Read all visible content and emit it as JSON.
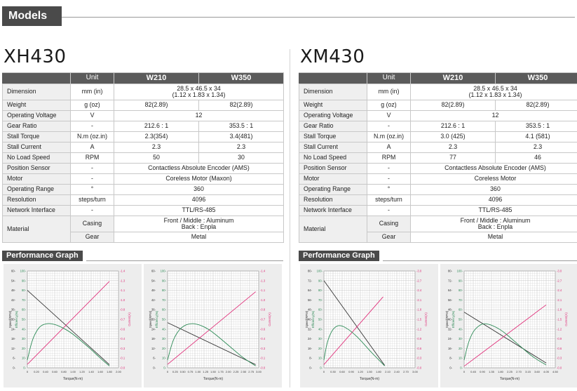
{
  "header": {
    "title": "Models"
  },
  "models": [
    {
      "name": "XH430",
      "table": {
        "unit_header": "Unit",
        "variants": [
          "W210",
          "W350"
        ],
        "rows": [
          {
            "label": "Dimension",
            "unit": "mm (in)",
            "merged": "28.5 x 46.5 x 34\n(1.12 x 1.83 x 1.34)"
          },
          {
            "label": "Weight",
            "unit": "g (oz)",
            "values": [
              "82(2.89)",
              "82(2.89)"
            ]
          },
          {
            "label": "Operating Voltage",
            "unit": "V",
            "merged": "12"
          },
          {
            "label": "Gear Ratio",
            "unit": "-",
            "values": [
              "212.6 : 1",
              "353.5 : 1"
            ]
          },
          {
            "label": "Stall Torque",
            "unit": "N.m (oz.in)",
            "values": [
              "2.3(354)",
              "3.4(481)"
            ]
          },
          {
            "label": "Stall Current",
            "unit": "A",
            "values": [
              "2.3",
              "2.3"
            ]
          },
          {
            "label": "No Load Speed",
            "unit": "RPM",
            "values": [
              "50",
              "30"
            ]
          },
          {
            "label": "Position Sensor",
            "unit": "-",
            "merged": "Contactless Absolute Encoder (AMS)"
          },
          {
            "label": "Motor",
            "unit": "-",
            "merged": "Coreless Motor (Maxon)"
          },
          {
            "label": "Operating Range",
            "unit": "°",
            "merged": "360"
          },
          {
            "label": "Resolution",
            "unit": "steps/turn",
            "merged": "4096"
          },
          {
            "label": "Network Interface",
            "unit": "-",
            "merged": "TTL/RS-485"
          }
        ],
        "material": {
          "label": "Material",
          "casing_label": "Casing",
          "casing": "Front / Middle : Aluminum\nBack : Enpla",
          "gear_label": "Gear",
          "gear": "Metal"
        }
      }
    },
    {
      "name": "XM430",
      "table": {
        "unit_header": "Unit",
        "variants": [
          "W210",
          "W350"
        ],
        "rows": [
          {
            "label": "Dimension",
            "unit": "mm (in)",
            "merged": "28.5 x 46.5 x 34\n(1.12 x 1.83 x 1.34)"
          },
          {
            "label": "Weight",
            "unit": "g (oz)",
            "values": [
              "82(2.89)",
              "82(2.89)"
            ]
          },
          {
            "label": "Operating Voltage",
            "unit": "V",
            "merged": "12"
          },
          {
            "label": "Gear Ratio",
            "unit": "-",
            "values": [
              "212.6 : 1",
              "353.5 : 1"
            ]
          },
          {
            "label": "Stall Torque",
            "unit": "N.m (oz.in)",
            "values": [
              "3.0 (425)",
              "4.1 (581)"
            ]
          },
          {
            "label": "Stall Current",
            "unit": "A",
            "values": [
              "2.3",
              "2.3"
            ]
          },
          {
            "label": "No Load Speed",
            "unit": "RPM",
            "values": [
              "77",
              "46"
            ]
          },
          {
            "label": "Position Sensor",
            "unit": "-",
            "merged": "Contactless Absolute Encoder (AMS)"
          },
          {
            "label": "Motor",
            "unit": "-",
            "merged": "Coreless Motor"
          },
          {
            "label": "Operating Range",
            "unit": "°",
            "merged": "360"
          },
          {
            "label": "Resolution",
            "unit": "steps/turn",
            "merged": "4096"
          },
          {
            "label": "Network Interface",
            "unit": "-",
            "merged": "TTL/RS-485"
          }
        ],
        "material": {
          "label": "Material",
          "casing_label": "Casing",
          "casing": "Front / Middle : Aluminum\nBack : Enpla",
          "gear_label": "Gear",
          "gear": "Metal"
        }
      }
    }
  ],
  "performance": {
    "title": "Performance Graph",
    "axis_labels": {
      "x": "Torque(N-m)",
      "speed": "Speed(RPM)",
      "efficiency": "Efficiency(%)",
      "current": "Current(A)"
    },
    "colors": {
      "speed": "#333333",
      "efficiency": "#2e8b57",
      "current": "#e0307a",
      "grid": "#c4c4c4",
      "plot_bg": "#ffffff",
      "panel_bg": "#ededed"
    }
  },
  "chart_data": [
    {
      "type": "line",
      "model": "XH430",
      "variant": "W210",
      "xlim": [
        0,
        2.0
      ],
      "x_ticks": [
        "0",
        "0.20",
        "0.40",
        "0.60",
        "0.80",
        "1.00",
        "1.20",
        "1.40",
        "1.60",
        "1.80",
        "2.00"
      ],
      "speed_ticks": [
        "0",
        "6",
        "12",
        "18",
        "24",
        "30",
        "36",
        "42",
        "48",
        "54",
        "60"
      ],
      "eff_ticks": [
        "0",
        "10",
        "20",
        "30",
        "40",
        "50",
        "60",
        "70",
        "80",
        "90",
        "100"
      ],
      "current_ticks": [
        "0.0",
        "0.1",
        "0.3",
        "0.4",
        "0.6",
        "0.7",
        "0.8",
        "1.0",
        "1.1",
        "1.3",
        "1.4"
      ],
      "speed_lim": [
        0,
        60
      ],
      "eff_lim": [
        0,
        100
      ],
      "current_lim": [
        0,
        1.4
      ],
      "series": [
        {
          "axis": "speed",
          "points": [
            [
              0,
              48
            ],
            [
              1.8,
              2
            ]
          ]
        },
        {
          "axis": "current",
          "points": [
            [
              0,
              0.05
            ],
            [
              1.8,
              1.25
            ]
          ]
        },
        {
          "axis": "efficiency",
          "points": [
            [
              0,
              8
            ],
            [
              0.1,
              28
            ],
            [
              0.2,
              38
            ],
            [
              0.3,
              44
            ],
            [
              0.45,
              46
            ],
            [
              0.6,
              45
            ],
            [
              0.8,
              41
            ],
            [
              1.0,
              35
            ],
            [
              1.2,
              27
            ],
            [
              1.4,
              19
            ],
            [
              1.6,
              10
            ],
            [
              1.8,
              2
            ]
          ]
        }
      ]
    },
    {
      "type": "line",
      "model": "XH430",
      "variant": "W350",
      "xlim": [
        0,
        3.0
      ],
      "x_ticks": [
        "0",
        "0.25",
        "0.50",
        "0.75",
        "1.00",
        "1.25",
        "1.50",
        "1.75",
        "2.00",
        "2.25",
        "2.50",
        "2.75",
        "3.00"
      ],
      "speed_ticks": [
        "0",
        "6",
        "12",
        "18",
        "24",
        "30",
        "36",
        "42",
        "48",
        "54",
        "60"
      ],
      "eff_ticks": [
        "0",
        "10",
        "20",
        "30",
        "40",
        "50",
        "60",
        "70",
        "80",
        "90",
        "100"
      ],
      "current_ticks": [
        "0.0",
        "0.1",
        "0.3",
        "0.4",
        "0.6",
        "0.7",
        "0.8",
        "1.0",
        "1.1",
        "1.3",
        "1.4"
      ],
      "speed_lim": [
        0,
        60
      ],
      "eff_lim": [
        0,
        100
      ],
      "current_lim": [
        0,
        1.4
      ],
      "series": [
        {
          "axis": "speed",
          "points": [
            [
              0,
              28
            ],
            [
              2.9,
              2
            ]
          ]
        },
        {
          "axis": "current",
          "points": [
            [
              0,
              0.05
            ],
            [
              2.9,
              1.1
            ]
          ]
        },
        {
          "axis": "efficiency",
          "points": [
            [
              0,
              8
            ],
            [
              0.15,
              26
            ],
            [
              0.3,
              36
            ],
            [
              0.5,
              43
            ],
            [
              0.75,
              46
            ],
            [
              1.0,
              45
            ],
            [
              1.3,
              41
            ],
            [
              1.6,
              34
            ],
            [
              1.9,
              26
            ],
            [
              2.2,
              18
            ],
            [
              2.5,
              10
            ],
            [
              2.9,
              2
            ]
          ]
        }
      ]
    },
    {
      "type": "line",
      "model": "XM430",
      "variant": "W210",
      "xlim": [
        0,
        3.0
      ],
      "x_ticks": [
        "0",
        "0.30",
        "0.60",
        "0.90",
        "1.20",
        "1.50",
        "1.80",
        "2.10",
        "2.40",
        "2.70",
        "3.00"
      ],
      "speed_ticks": [
        "0",
        "8",
        "16",
        "24",
        "32",
        "40",
        "48",
        "56",
        "64",
        "72",
        "80"
      ],
      "eff_ticks": [
        "0",
        "10",
        "20",
        "30",
        "40",
        "50",
        "60",
        "70",
        "80",
        "90",
        "100"
      ],
      "current_ticks": [
        "0.0",
        "0.3",
        "0.6",
        "0.9",
        "1.2",
        "1.5",
        "1.8",
        "2.1",
        "2.4",
        "2.7",
        "3.0"
      ],
      "speed_lim": [
        0,
        80
      ],
      "eff_lim": [
        0,
        100
      ],
      "current_lim": [
        0,
        3.0
      ],
      "series": [
        {
          "axis": "speed",
          "points": [
            [
              0,
              72
            ],
            [
              2.0,
              2
            ]
          ]
        },
        {
          "axis": "current",
          "points": [
            [
              0,
              0.1
            ],
            [
              1.95,
              2.2
            ]
          ]
        },
        {
          "axis": "efficiency",
          "points": [
            [
              0,
              8
            ],
            [
              0.1,
              26
            ],
            [
              0.25,
              38
            ],
            [
              0.4,
              43
            ],
            [
              0.55,
              44
            ],
            [
              0.75,
              41
            ],
            [
              1.0,
              35
            ],
            [
              1.25,
              27
            ],
            [
              1.5,
              18
            ],
            [
              1.75,
              10
            ],
            [
              2.0,
              2
            ]
          ]
        }
      ]
    },
    {
      "type": "line",
      "model": "XM430",
      "variant": "W350",
      "xlim": [
        0,
        4.5
      ],
      "x_ticks": [
        "0",
        "0.45",
        "0.90",
        "1.35",
        "1.80",
        "2.25",
        "2.70",
        "3.15",
        "3.60",
        "4.05",
        "4.50"
      ],
      "speed_ticks": [
        "0",
        "8",
        "16",
        "24",
        "32",
        "40",
        "48",
        "56",
        "64",
        "72",
        "80"
      ],
      "eff_ticks": [
        "0",
        "10",
        "20",
        "30",
        "40",
        "50",
        "60",
        "70",
        "80",
        "90",
        "100"
      ],
      "current_ticks": [
        "0.0",
        "0.3",
        "0.6",
        "0.9",
        "1.2",
        "1.5",
        "1.8",
        "2.1",
        "2.4",
        "2.7",
        "3.0"
      ],
      "speed_lim": [
        0,
        80
      ],
      "eff_lim": [
        0,
        100
      ],
      "current_lim": [
        0,
        3.0
      ],
      "series": [
        {
          "axis": "speed",
          "points": [
            [
              0,
              46
            ],
            [
              4.05,
              4
            ]
          ]
        },
        {
          "axis": "current",
          "points": [
            [
              0,
              0.05
            ],
            [
              4.05,
              1.95
            ]
          ]
        },
        {
          "axis": "efficiency",
          "points": [
            [
              0,
              8
            ],
            [
              0.2,
              26
            ],
            [
              0.45,
              38
            ],
            [
              0.75,
              44
            ],
            [
              1.0,
              46
            ],
            [
              1.4,
              44
            ],
            [
              1.9,
              38
            ],
            [
              2.4,
              29
            ],
            [
              2.9,
              20
            ],
            [
              3.4,
              11
            ],
            [
              4.05,
              3
            ]
          ]
        }
      ]
    }
  ]
}
